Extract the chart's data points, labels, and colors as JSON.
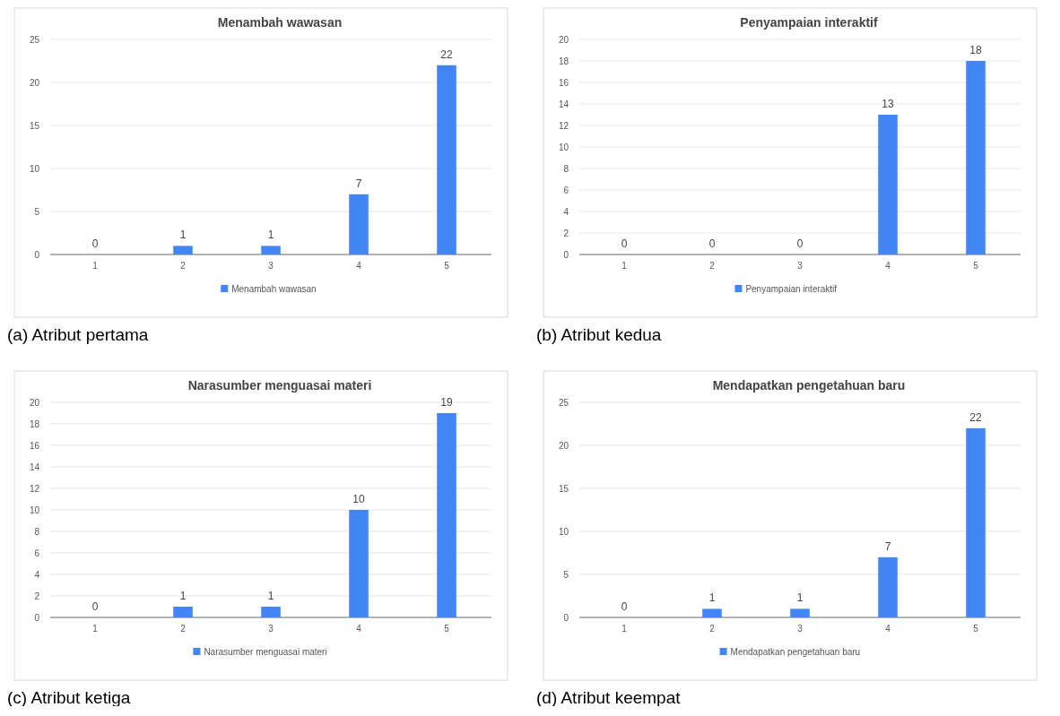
{
  "chart_data": [
    {
      "type": "bar",
      "title": "Menambah wawasan",
      "categories": [
        "1",
        "2",
        "3",
        "4",
        "5"
      ],
      "series": [
        {
          "name": "Menambah wawasan",
          "color": "#4285f4",
          "values": [
            0,
            1,
            1,
            7,
            22
          ]
        }
      ],
      "ylim": [
        0,
        25
      ],
      "yticks": [
        0,
        5,
        10,
        15,
        20,
        25
      ],
      "grid": "y",
      "legend": "bottom",
      "data_labels": true,
      "annotations": [
        "(a) Atribut pertama"
      ]
    },
    {
      "type": "bar",
      "title": "Penyampaian interaktif",
      "categories": [
        "1",
        "2",
        "3",
        "4",
        "5"
      ],
      "series": [
        {
          "name": "Penyampaian interaktif",
          "color": "#4285f4",
          "values": [
            0,
            0,
            0,
            13,
            18
          ]
        }
      ],
      "ylim": [
        0,
        20
      ],
      "yticks": [
        0,
        2,
        4,
        6,
        8,
        10,
        12,
        14,
        16,
        18,
        20
      ],
      "grid": "y",
      "legend": "bottom",
      "data_labels": true,
      "annotations": [
        "(b) Atribut kedua"
      ]
    },
    {
      "type": "bar",
      "title": "Narasumber menguasai materi",
      "categories": [
        "1",
        "2",
        "3",
        "4",
        "5"
      ],
      "series": [
        {
          "name": "Narasumber menguasai materi",
          "color": "#4285f4",
          "values": [
            0,
            1,
            1,
            10,
            19
          ]
        }
      ],
      "ylim": [
        0,
        20
      ],
      "yticks": [
        0,
        2,
        4,
        6,
        8,
        10,
        12,
        14,
        16,
        18,
        20
      ],
      "grid": "y",
      "legend": "bottom",
      "data_labels": true,
      "annotations": [
        "(c) Atribut ketiga"
      ]
    },
    {
      "type": "bar",
      "title": "Mendapatkan pengetahuan baru",
      "categories": [
        "1",
        "2",
        "3",
        "4",
        "5"
      ],
      "series": [
        {
          "name": "Mendapatkan pengetahuan baru",
          "color": "#4285f4",
          "values": [
            0,
            1,
            1,
            7,
            22
          ]
        }
      ],
      "ylim": [
        0,
        25
      ],
      "yticks": [
        0,
        5,
        10,
        15,
        20,
        25
      ],
      "grid": "y",
      "legend": "bottom",
      "data_labels": true,
      "annotations": [
        "(d) Atribut keempat"
      ]
    }
  ]
}
